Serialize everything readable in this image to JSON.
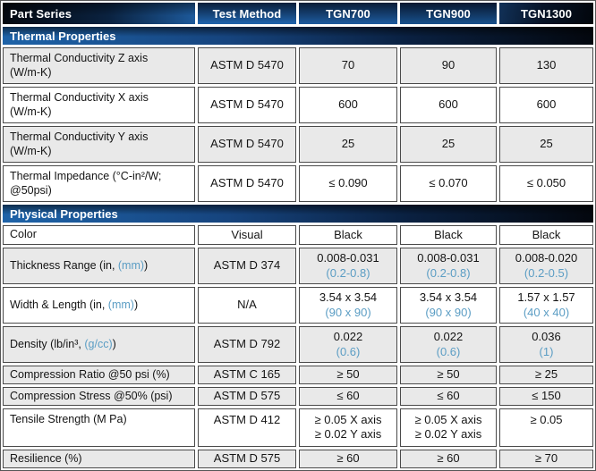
{
  "header": {
    "part_series": "Part Series",
    "test_method": "Test Method",
    "tgn700": "TGN700",
    "tgn900": "TGN900",
    "tgn1300": "TGN1300"
  },
  "sections": {
    "thermal": "Thermal Properties",
    "physical": "Physical Properties"
  },
  "colors": {
    "accent_blue": "#5b9dc4",
    "band_blue": "#1e63a8",
    "band_dark": "#03070e",
    "row_gray": "#e9e9e9",
    "cell_border": "#4a4a4a"
  },
  "rows": {
    "tcz": {
      "label1": "Thermal Conductivity Z axis",
      "label2": "(W/m-K)",
      "method": "ASTM D 5470",
      "v1": "70",
      "v2": "90",
      "v3": "130"
    },
    "tcx": {
      "label1": "Thermal Conductivity X axis",
      "label2": "(W/m-K)",
      "method": "ASTM D 5470",
      "v1": "600",
      "v2": "600",
      "v3": "600"
    },
    "tcy": {
      "label1": "Thermal Conductivity Y axis",
      "label2": "(W/m-K)",
      "method": "ASTM D 5470",
      "v1": "25",
      "v2": "25",
      "v3": "25"
    },
    "imp": {
      "label1": "Thermal Impedance (°C-in²/W;",
      "label2": "@50psi)",
      "method": "ASTM D 5470",
      "v1": "≤ 0.090",
      "v2": "≤ 0.070",
      "v3": "≤ 0.050"
    },
    "color": {
      "label": "Color",
      "method": "Visual",
      "v1": "Black",
      "v2": "Black",
      "v3": "Black"
    },
    "thick": {
      "label_pre": "Thickness Range (in, ",
      "label_blue": "(mm)",
      "label_post": ")",
      "method": "ASTM D 374",
      "v1": "0.008-0.031",
      "v1b": "(0.2-0.8)",
      "v2": "0.008-0.031",
      "v2b": "(0.2-0.8)",
      "v3": "0.008-0.020",
      "v3b": "(0.2-0.5)"
    },
    "wl": {
      "label_pre": "Width & Length (in, ",
      "label_blue": "(mm)",
      "label_post": ")",
      "method": "N/A",
      "v1": "3.54 x 3.54",
      "v1b": "(90 x 90)",
      "v2": "3.54 x 3.54",
      "v2b": "(90 x 90)",
      "v3": "1.57 x 1.57",
      "v3b": "(40 x 40)"
    },
    "dens": {
      "label_pre": "Density (lb/in³, ",
      "label_blue": "(g/cc)",
      "label_post": ")",
      "method": "ASTM D 792",
      "v1": "0.022",
      "v1b": "(0.6)",
      "v2": "0.022",
      "v2b": "(0.6)",
      "v3": "0.036",
      "v3b": "(1)"
    },
    "cratio": {
      "label": "Compression Ratio @50 psi (%)",
      "method": "ASTM C 165",
      "v1": "≥ 50",
      "v2": "≥ 50",
      "v3": "≥ 25"
    },
    "cstress": {
      "label": "Compression Stress @50% (psi)",
      "method": "ASTM D 575",
      "v1": "≤ 60",
      "v2": "≤ 60",
      "v3": "≤ 150"
    },
    "tens": {
      "label": "Tensile Strength (M Pa)",
      "method": "ASTM D 412",
      "v1a": "≥ 0.05 X axis",
      "v1b": "≥ 0.02 Y axis",
      "v2a": "≥ 0.05 X axis",
      "v2b": "≥ 0.02 Y axis",
      "v3": "≥ 0.05"
    },
    "res": {
      "label": "Resilience (%)",
      "method": "ASTM D 575",
      "v1": "≥ 60",
      "v2": "≥ 60",
      "v3": "≥ 70"
    }
  }
}
